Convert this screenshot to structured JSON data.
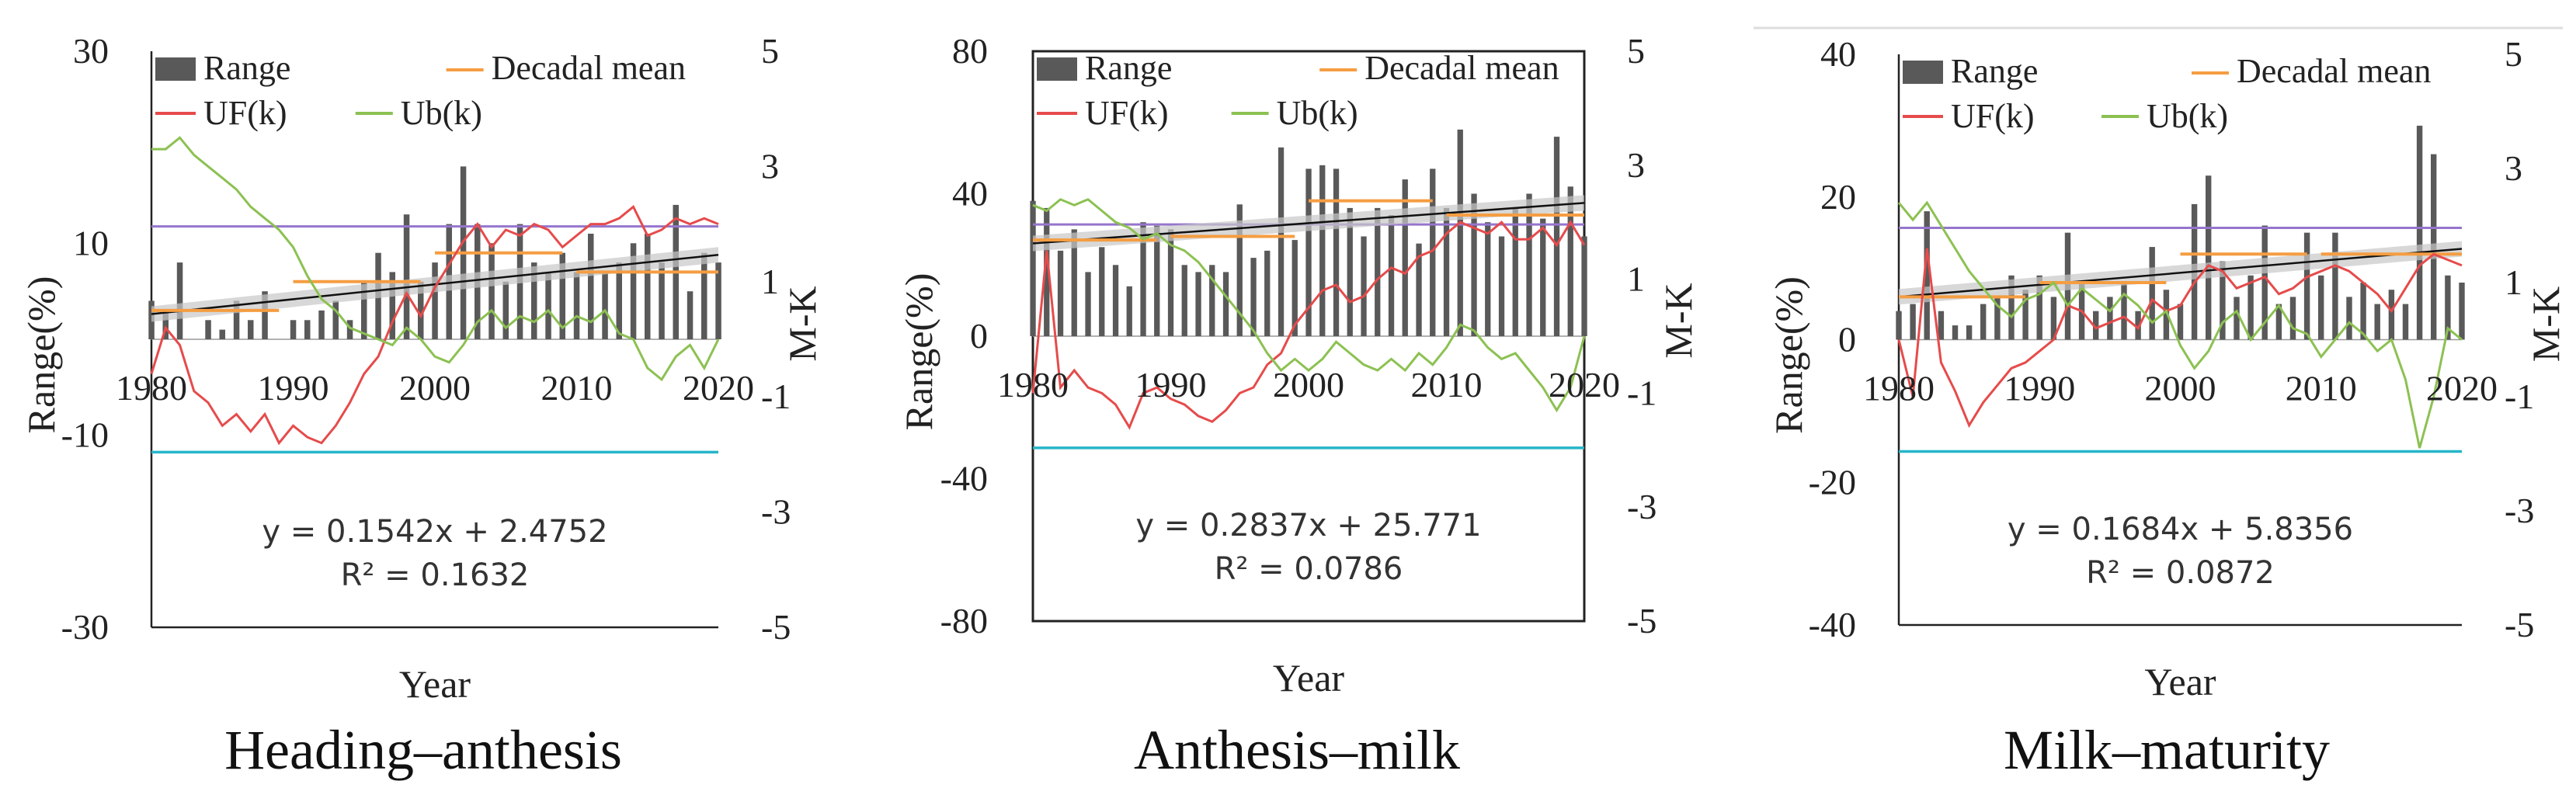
{
  "legend_labels": {
    "range": "Range",
    "decadal": "Decadal mean",
    "uf": "UF(k)",
    "ub": "Ub(k)"
  },
  "colors": {
    "bars": "#595959",
    "decadal": "#f59d42",
    "uf": "#e64b4b",
    "ub": "#8cc152",
    "upper_sig": "#9575cd",
    "lower_sig": "#26b5c9",
    "trend": "#111111",
    "trend_band": "#c8c8c8"
  },
  "chart_data": [
    {
      "type": "bar",
      "caption": "Heading–anthesis",
      "xlabel": "Year",
      "ylabel": "Range(%)",
      "y2label": "M-K",
      "xlim": [
        1980,
        2020
      ],
      "ylim": [
        -30,
        30
      ],
      "y2lim": [
        -5,
        5
      ],
      "yticks": [
        -30,
        -10,
        10,
        30
      ],
      "y2ticks": [
        -5,
        -3,
        -1,
        1,
        3,
        5
      ],
      "xticks": [
        1980,
        1990,
        2000,
        2010,
        2020
      ],
      "equation": "y = 0.1542x + 2.4752",
      "r2": "R² = 0.1632",
      "trend": {
        "slope": 0.1542,
        "intercept": 2.4752
      },
      "years": [
        1980,
        1981,
        1982,
        1983,
        1984,
        1985,
        1986,
        1987,
        1988,
        1989,
        1990,
        1991,
        1992,
        1993,
        1994,
        1995,
        1996,
        1997,
        1998,
        1999,
        2000,
        2001,
        2002,
        2003,
        2004,
        2005,
        2006,
        2007,
        2008,
        2009,
        2010,
        2011,
        2012,
        2013,
        2014,
        2015,
        2016,
        2017,
        2018,
        2019,
        2020
      ],
      "range": [
        4,
        3,
        8,
        0,
        2,
        1,
        4,
        2,
        5,
        0,
        2,
        2,
        3,
        4,
        2,
        6,
        9,
        7,
        13,
        6,
        8,
        12,
        18,
        12,
        10,
        6,
        12,
        8,
        7,
        9,
        7,
        11,
        7,
        8,
        10,
        11,
        8,
        14,
        5,
        9,
        8
      ],
      "decadal_mean": [
        {
          "x": [
            1980,
            1989
          ],
          "y": 3
        },
        {
          "x": [
            1990,
            1999
          ],
          "y": 6
        },
        {
          "x": [
            2000,
            2009
          ],
          "y": 9
        },
        {
          "x": [
            2010,
            2020
          ],
          "y": 7
        }
      ],
      "uf": [
        -0.6,
        0.2,
        -0.1,
        -0.9,
        -1.1,
        -1.5,
        -1.3,
        -1.6,
        -1.3,
        -1.8,
        -1.5,
        -1.7,
        -1.8,
        -1.5,
        -1.1,
        -0.6,
        -0.3,
        0.3,
        0.8,
        0.4,
        0.9,
        1.3,
        1.7,
        2.0,
        1.6,
        1.9,
        1.8,
        2.0,
        1.9,
        1.6,
        1.8,
        2.0,
        2.0,
        2.1,
        2.3,
        1.8,
        1.9,
        2.1,
        2.0,
        2.1,
        2.0
      ],
      "ub": [
        3.3,
        3.3,
        3.5,
        3.2,
        3.0,
        2.8,
        2.6,
        2.3,
        2.1,
        1.9,
        1.6,
        1.1,
        0.7,
        0.5,
        0.2,
        0.1,
        0.0,
        -0.1,
        0.2,
        0.0,
        -0.3,
        -0.4,
        -0.1,
        0.3,
        0.5,
        0.2,
        0.4,
        0.3,
        0.5,
        0.2,
        0.4,
        0.3,
        0.5,
        0.1,
        0.0,
        -0.5,
        -0.7,
        -0.3,
        -0.1,
        -0.5,
        0.0
      ],
      "sig_upper": 1.96,
      "sig_lower": -1.96
    },
    {
      "type": "bar",
      "caption": "Anthesis–milk",
      "xlabel": "Year",
      "ylabel": "Range(%)",
      "y2label": "M-K",
      "xlim": [
        1980,
        2020
      ],
      "ylim": [
        -80,
        80
      ],
      "y2lim": [
        -5,
        5
      ],
      "yticks": [
        -80,
        -40,
        0,
        40,
        80
      ],
      "y2ticks": [
        -5,
        -3,
        -1,
        1,
        3,
        5
      ],
      "xticks": [
        1980,
        1990,
        2000,
        2010,
        2020
      ],
      "equation": "y = 0.2837x + 25.771",
      "r2": "R² = 0.0786",
      "trend": {
        "slope": 0.2837,
        "intercept": 25.771
      },
      "years": [
        1980,
        1981,
        1982,
        1983,
        1984,
        1985,
        1986,
        1987,
        1988,
        1989,
        1990,
        1991,
        1992,
        1993,
        1994,
        1995,
        1996,
        1997,
        1998,
        1999,
        2000,
        2001,
        2002,
        2003,
        2004,
        2005,
        2006,
        2007,
        2008,
        2009,
        2010,
        2011,
        2012,
        2013,
        2014,
        2015,
        2016,
        2017,
        2018,
        2019,
        2020
      ],
      "range": [
        38,
        36,
        24,
        30,
        18,
        25,
        20,
        14,
        32,
        31,
        30,
        20,
        18,
        20,
        18,
        37,
        22,
        24,
        53,
        27,
        47,
        48,
        47,
        36,
        28,
        36,
        34,
        44,
        26,
        47,
        36,
        58,
        40,
        32,
        28,
        36,
        40,
        33,
        56,
        42,
        28
      ],
      "decadal_mean": [
        {
          "x": [
            1980,
            1989
          ],
          "y": 27
        },
        {
          "x": [
            1990,
            1999
          ],
          "y": 28
        },
        {
          "x": [
            2000,
            2009
          ],
          "y": 38
        },
        {
          "x": [
            2010,
            2020
          ],
          "y": 34
        }
      ],
      "uf": [
        -1.0,
        1.5,
        -0.9,
        -0.6,
        -0.9,
        -1.0,
        -1.2,
        -1.6,
        -1.0,
        -0.9,
        -1.1,
        -1.2,
        -1.4,
        -1.5,
        -1.3,
        -1.0,
        -0.9,
        -0.5,
        -0.3,
        0.2,
        0.5,
        0.8,
        0.9,
        0.6,
        0.7,
        1.0,
        1.2,
        1.1,
        1.4,
        1.5,
        1.8,
        2.0,
        1.9,
        1.8,
        2.0,
        1.7,
        1.7,
        1.9,
        1.6,
        2.0,
        1.6
      ],
      "ub": [
        2.3,
        2.2,
        2.4,
        2.3,
        2.4,
        2.2,
        2.0,
        1.9,
        1.7,
        1.8,
        1.6,
        1.5,
        1.3,
        1.0,
        0.7,
        0.4,
        0.1,
        -0.3,
        -0.6,
        -0.4,
        -0.6,
        -0.4,
        -0.1,
        -0.3,
        -0.5,
        -0.6,
        -0.4,
        -0.6,
        -0.3,
        -0.5,
        -0.2,
        0.2,
        0.1,
        -0.2,
        -0.4,
        -0.3,
        -0.6,
        -0.9,
        -1.3,
        -0.9,
        0.0
      ],
      "sig_upper": 1.96,
      "sig_lower": -1.96
    },
    {
      "type": "bar",
      "caption": "Milk–maturity",
      "xlabel": "Year",
      "ylabel": "Range(%)",
      "y2label": "M-K",
      "xlim": [
        1980,
        2020
      ],
      "ylim": [
        -40,
        40
      ],
      "y2lim": [
        -5,
        5
      ],
      "yticks": [
        -40,
        -20,
        0,
        20,
        40
      ],
      "y2ticks": [
        -5,
        -3,
        -1,
        1,
        3,
        5
      ],
      "xticks": [
        1980,
        1990,
        2000,
        2010,
        2020
      ],
      "equation": "y = 0.1684x + 5.8356",
      "r2": "R² = 0.0872",
      "trend": {
        "slope": 0.1684,
        "intercept": 5.8356
      },
      "years": [
        1980,
        1981,
        1982,
        1983,
        1984,
        1985,
        1986,
        1987,
        1988,
        1989,
        1990,
        1991,
        1992,
        1993,
        1994,
        1995,
        1996,
        1997,
        1998,
        1999,
        2000,
        2001,
        2002,
        2003,
        2004,
        2005,
        2006,
        2007,
        2008,
        2009,
        2010,
        2011,
        2012,
        2013,
        2014,
        2015,
        2016,
        2017,
        2018,
        2019,
        2020
      ],
      "range": [
        4,
        5,
        18,
        4,
        2,
        2,
        5,
        6,
        9,
        7,
        9,
        6,
        15,
        8,
        4,
        6,
        8,
        4,
        13,
        7,
        5,
        19,
        23,
        11,
        6,
        9,
        16,
        5,
        6,
        15,
        9,
        15,
        6,
        8,
        5,
        7,
        5,
        30,
        26,
        9,
        8
      ],
      "decadal_mean": [
        {
          "x": [
            1980,
            1989
          ],
          "y": 6
        },
        {
          "x": [
            1990,
            1999
          ],
          "y": 8
        },
        {
          "x": [
            2000,
            2009
          ],
          "y": 12
        },
        {
          "x": [
            2010,
            2020
          ],
          "y": 12
        }
      ],
      "uf": [
        0.0,
        -1.0,
        1.6,
        -0.4,
        -0.9,
        -1.5,
        -1.1,
        -0.8,
        -0.5,
        -0.4,
        -0.2,
        0.0,
        0.6,
        0.5,
        0.2,
        0.3,
        0.4,
        0.2,
        0.7,
        0.5,
        0.6,
        1.0,
        1.3,
        1.2,
        0.9,
        1.0,
        1.1,
        0.8,
        0.9,
        1.1,
        1.2,
        1.3,
        1.2,
        1.0,
        0.8,
        0.5,
        0.9,
        1.3,
        1.5,
        1.4,
        1.3
      ],
      "ub": [
        2.4,
        2.1,
        2.4,
        2.0,
        1.6,
        1.2,
        0.9,
        0.6,
        0.4,
        0.7,
        0.8,
        1.0,
        0.6,
        0.9,
        0.7,
        0.5,
        0.8,
        0.6,
        0.3,
        0.5,
        -0.1,
        -0.5,
        -0.2,
        0.3,
        0.5,
        0.0,
        0.3,
        0.6,
        0.2,
        0.1,
        -0.3,
        0.0,
        0.3,
        0.1,
        -0.2,
        0.0,
        -0.7,
        -1.9,
        -1.0,
        0.2,
        0.0
      ],
      "sig_upper": 1.96,
      "sig_lower": -1.96
    }
  ]
}
